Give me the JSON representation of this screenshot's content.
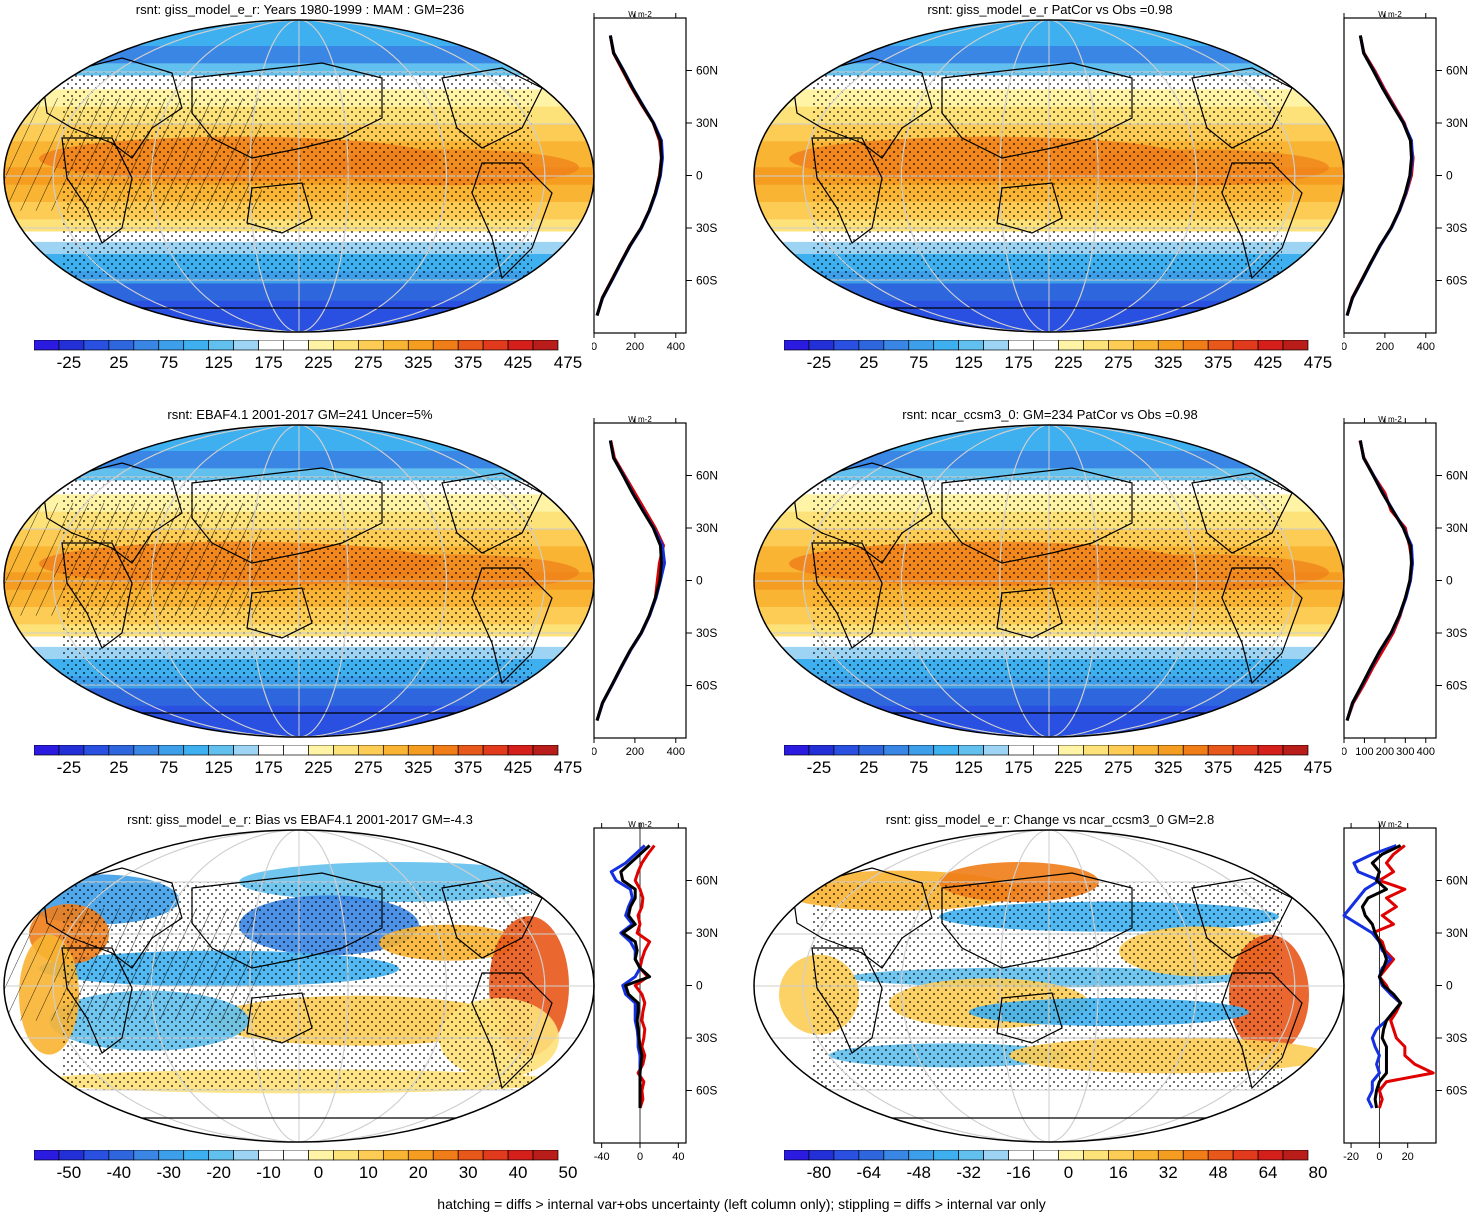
{
  "footnote": "hatching = diffs > internal var+obs uncertainty (left column only); stippling = diffs > internal var only",
  "palette_abs": [
    "#2b1ae0",
    "#2330d8",
    "#2950e0",
    "#2e66dd",
    "#3a86e4",
    "#3d9ee9",
    "#3fb0ef",
    "#62c0ee",
    "#9dd4f3",
    "#ffffff",
    "#ffffff",
    "#fff3a6",
    "#fde27a",
    "#fccc55",
    "#f8b432",
    "#f59d21",
    "#f07d18",
    "#e8581a",
    "#e23a1c",
    "#d41f1a",
    "#b81d1a"
  ],
  "palette_diff": [
    "#2b1ae0",
    "#2330d8",
    "#2950e0",
    "#2e66dd",
    "#3a86e4",
    "#3d9ee9",
    "#3fb0ef",
    "#62c0ee",
    "#9dd4f3",
    "#ffffff",
    "#ffffff",
    "#fff3a6",
    "#fde27a",
    "#fccc55",
    "#f8b432",
    "#f59d21",
    "#f07d18",
    "#e8581a",
    "#e23a1c",
    "#d41f1a",
    "#b81d1a"
  ],
  "panels": [
    {
      "id": "p1",
      "title": "rsnt: giss_model_e_r: Years 1980-1999 : MAM : GM=236",
      "kind": "abs",
      "colorbar_labels": [
        "-25",
        "25",
        "75",
        "125",
        "175",
        "225",
        "275",
        "325",
        "375",
        "425",
        "475"
      ],
      "zonal": {
        "x_ticks": [
          "0",
          "200",
          "400"
        ],
        "unit": "W m-2",
        "lat_ticks": [
          "60N",
          "30N",
          "0",
          "30S",
          "60S"
        ],
        "xlim": [
          0,
          450
        ]
      },
      "chart_data": {
        "type": "line",
        "xlabel": "W m-2",
        "lat": [
          80,
          70,
          60,
          50,
          40,
          30,
          20,
          10,
          0,
          -10,
          -20,
          -30,
          -40,
          -50,
          -60,
          -70,
          -80
        ],
        "series": [
          {
            "color": "#e00000",
            "values": [
              80,
              95,
              140,
              185,
              235,
              290,
              320,
              330,
              320,
              300,
              270,
              230,
              175,
              130,
              85,
              40,
              15
            ]
          },
          {
            "color": "#1530e0",
            "values": [
              80,
              97,
              145,
              190,
              240,
              292,
              330,
              335,
              325,
              303,
              272,
              232,
              178,
              132,
              88,
              42,
              15
            ]
          },
          {
            "color": "#000000",
            "values": [
              80,
              96,
              143,
              188,
              238,
              290,
              325,
              330,
              322,
              300,
              270,
              230,
              176,
              130,
              86,
              41,
              15
            ]
          }
        ]
      }
    },
    {
      "id": "p2",
      "title": "rsnt: giss_model_e_r PatCor vs Obs =0.98",
      "kind": "abs",
      "colorbar_labels": [
        "-25",
        "25",
        "75",
        "125",
        "175",
        "225",
        "275",
        "325",
        "375",
        "425",
        "475"
      ],
      "zonal": {
        "x_ticks": [
          "0",
          "200",
          "400"
        ],
        "unit": "W m-2",
        "lat_ticks": [
          "60N",
          "30N",
          "0",
          "30S",
          "60S"
        ],
        "xlim": [
          0,
          450
        ]
      },
      "chart_data": {
        "type": "line",
        "xlabel": "W m-2",
        "lat": [
          80,
          70,
          60,
          50,
          40,
          30,
          20,
          10,
          0,
          -10,
          -20,
          -30,
          -40,
          -50,
          -60,
          -70,
          -80
        ],
        "series": [
          {
            "color": "#e00000",
            "values": [
              80,
              98,
              150,
              195,
              245,
              295,
              325,
              338,
              330,
              305,
              272,
              230,
              178,
              130,
              85,
              40,
              15
            ]
          },
          {
            "color": "#1530e0",
            "values": [
              80,
              96,
              145,
              190,
              240,
              292,
              330,
              335,
              325,
              303,
              272,
              232,
              178,
              132,
              88,
              42,
              15
            ]
          },
          {
            "color": "#000000",
            "values": [
              80,
              96,
              143,
              188,
              238,
              290,
              325,
              330,
              322,
              300,
              270,
              230,
              176,
              130,
              86,
              41,
              15
            ]
          }
        ]
      }
    },
    {
      "id": "p3",
      "title": "rsnt: EBAF4.1 2001-2017 GM=241 Uncer=5%",
      "kind": "abs",
      "colorbar_labels": [
        "-25",
        "25",
        "75",
        "125",
        "175",
        "225",
        "275",
        "325",
        "375",
        "425",
        "475"
      ],
      "zonal": {
        "x_ticks": [
          "0",
          "200",
          "400"
        ],
        "unit": "W m-2",
        "lat_ticks": [
          "60N",
          "30N",
          "0",
          "30S",
          "60S"
        ],
        "xlim": [
          0,
          450
        ]
      },
      "chart_data": {
        "type": "line",
        "xlabel": "W m-2",
        "lat": [
          80,
          70,
          60,
          50,
          40,
          30,
          20,
          10,
          0,
          -10,
          -20,
          -30,
          -40,
          -50,
          -60,
          -70,
          -80
        ],
        "series": [
          {
            "color": "#e00000",
            "values": [
              82,
              100,
              150,
              200,
              250,
              300,
              340,
              320,
              310,
              300,
              272,
              232,
              178,
              132,
              88,
              42,
              15
            ]
          },
          {
            "color": "#1530e0",
            "values": [
              80,
              96,
              145,
              190,
              240,
              292,
              335,
              345,
              325,
              303,
              272,
              232,
              178,
              132,
              88,
              42,
              15
            ]
          },
          {
            "color": "#000000",
            "values": [
              80,
              96,
              143,
              188,
              238,
              290,
              325,
              330,
              322,
              300,
              270,
              230,
              176,
              130,
              86,
              41,
              15
            ]
          }
        ]
      }
    },
    {
      "id": "p4",
      "title": "rsnt: ncar_ccsm3_0: GM=234 PatCor vs Obs =0.98",
      "kind": "abs",
      "colorbar_labels": [
        "-25",
        "25",
        "75",
        "125",
        "175",
        "225",
        "275",
        "325",
        "375",
        "425",
        "475"
      ],
      "zonal": {
        "x_ticks": [
          "0",
          "100",
          "200",
          "300",
          "400"
        ],
        "unit": "W m-2",
        "lat_ticks": [
          "60N",
          "30N",
          "0",
          "30S",
          "60S"
        ],
        "xlim": [
          0,
          450
        ]
      },
      "chart_data": {
        "type": "line",
        "xlabel": "W m-2",
        "lat": [
          80,
          70,
          60,
          50,
          40,
          30,
          20,
          10,
          0,
          -10,
          -20,
          -30,
          -40,
          -50,
          -60,
          -70,
          -80
        ],
        "series": [
          {
            "color": "#e00000",
            "values": [
              78,
              98,
              145,
              200,
              230,
              300,
              320,
              335,
              325,
              300,
              275,
              240,
              190,
              140,
              95,
              45,
              15
            ]
          },
          {
            "color": "#1530e0",
            "values": [
              80,
              96,
              145,
              190,
              240,
              292,
              330,
              335,
              325,
              303,
              272,
              232,
              178,
              132,
              88,
              42,
              15
            ]
          },
          {
            "color": "#000000",
            "values": [
              80,
              96,
              143,
              188,
              238,
              290,
              325,
              330,
              322,
              300,
              270,
              230,
              176,
              130,
              86,
              41,
              15
            ]
          }
        ]
      }
    },
    {
      "id": "p5",
      "title": "rsnt: giss_model_e_r: Bias vs EBAF4.1 2001-2017 GM=-4.3",
      "kind": "diff",
      "colorbar_labels": [
        "-50",
        "-40",
        "-30",
        "-20",
        "-10",
        "0",
        "10",
        "20",
        "30",
        "40",
        "50"
      ],
      "zonal": {
        "x_ticks": [
          "-40",
          "0",
          "40"
        ],
        "unit": "W m-2",
        "lat_ticks": [
          "60N",
          "30N",
          "0",
          "30S",
          "60S"
        ],
        "xlim": [
          -48,
          48
        ]
      },
      "chart_data": {
        "type": "line",
        "xlabel": "W m-2",
        "lat": [
          80,
          75,
          70,
          65,
          60,
          55,
          50,
          45,
          40,
          35,
          30,
          25,
          20,
          15,
          10,
          5,
          0,
          -5,
          -10,
          -15,
          -20,
          -25,
          -30,
          -35,
          -40,
          -45,
          -50,
          -55,
          -60,
          -65,
          -70
        ],
        "series": [
          {
            "color": "#e00000",
            "values": [
              15,
              8,
              2,
              -2,
              -5,
              0,
              3,
              2,
              -2,
              0,
              -3,
              10,
              5,
              2,
              0,
              8,
              -5,
              2,
              5,
              3,
              2,
              5,
              4,
              2,
              5,
              3,
              -2,
              4,
              2,
              3,
              0
            ]
          },
          {
            "color": "#1530e0",
            "values": [
              5,
              -5,
              -15,
              -30,
              -25,
              -10,
              -8,
              -12,
              -15,
              -8,
              -20,
              -10,
              -5,
              -5,
              0,
              -5,
              -18,
              -15,
              -5,
              -5,
              -5,
              -3,
              -2,
              -2,
              0,
              0,
              0,
              0,
              0,
              0,
              0
            ]
          },
          {
            "color": "#000000",
            "values": [
              10,
              0,
              -10,
              -20,
              -18,
              -5,
              -5,
              -10,
              -12,
              -5,
              -18,
              -5,
              -3,
              -5,
              0,
              10,
              -15,
              -12,
              -2,
              -2,
              -3,
              -2,
              -1,
              0,
              2,
              1,
              0,
              0,
              0,
              0,
              0
            ]
          }
        ]
      }
    },
    {
      "id": "p6",
      "title": "rsnt: giss_model_e_r: Change vs ncar_ccsm3_0 GM=2.8",
      "kind": "diff",
      "colorbar_labels": [
        "-80",
        "-64",
        "-48",
        "-32",
        "-16",
        "0",
        "16",
        "32",
        "48",
        "64",
        "80"
      ],
      "zonal": {
        "x_ticks": [
          "-20",
          "0",
          "20"
        ],
        "unit": "W m-2",
        "lat_ticks": [
          "60N",
          "30N",
          "0",
          "30S",
          "60S"
        ],
        "xlim": [
          -25,
          40
        ]
      },
      "chart_data": {
        "type": "line",
        "xlabel": "W m-2",
        "lat": [
          80,
          75,
          70,
          65,
          60,
          55,
          50,
          45,
          40,
          35,
          30,
          25,
          20,
          15,
          10,
          5,
          0,
          -5,
          -10,
          -15,
          -20,
          -25,
          -30,
          -35,
          -40,
          -45,
          -50,
          -55,
          -60,
          -65,
          -70
        ],
        "series": [
          {
            "color": "#e00000",
            "values": [
              18,
              10,
              5,
              10,
              0,
              18,
              5,
              12,
              2,
              10,
              -5,
              2,
              4,
              10,
              5,
              0,
              5,
              8,
              15,
              12,
              8,
              10,
              12,
              18,
              18,
              25,
              38,
              5,
              0,
              2,
              0
            ]
          },
          {
            "color": "#1530e0",
            "values": [
              12,
              -5,
              -18,
              -15,
              0,
              -10,
              -15,
              -20,
              -25,
              -15,
              -5,
              0,
              2,
              8,
              2,
              0,
              2,
              8,
              15,
              10,
              5,
              -2,
              -5,
              -3,
              0,
              -2,
              0,
              -5,
              -5,
              -8,
              -5
            ]
          },
          {
            "color": "#000000",
            "values": [
              15,
              2,
              -5,
              0,
              -2,
              5,
              -8,
              -12,
              -10,
              -5,
              -3,
              0,
              3,
              5,
              3,
              0,
              3,
              10,
              15,
              10,
              5,
              3,
              2,
              5,
              5,
              5,
              5,
              0,
              -2,
              -3,
              -2
            ]
          }
        ]
      }
    }
  ]
}
